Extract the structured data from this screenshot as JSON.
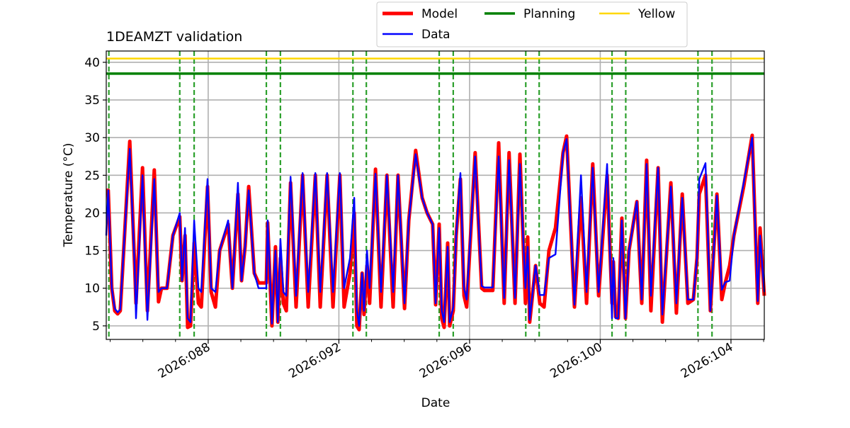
{
  "chart_data": {
    "type": "line",
    "title": "1DEAMZT validation",
    "xlabel": "Date",
    "ylabel": "Temperature (°C)",
    "xlim": [
      84.88,
      105.02
    ],
    "ylim": [
      3.2,
      41.5
    ],
    "grid": true,
    "legend_placement": "top-center, outside above axes",
    "x_ticks": [
      88,
      92,
      96,
      100,
      104
    ],
    "x_tick_labels": [
      "2026:088",
      "2026:092",
      "2026:096",
      "2026:100",
      "2026:104"
    ],
    "x_minor_ticks": [
      85,
      86,
      87,
      89,
      90,
      91,
      93,
      94,
      95,
      97,
      98,
      99,
      101,
      102,
      103,
      105
    ],
    "y_ticks": [
      5,
      10,
      15,
      20,
      25,
      30,
      35,
      40
    ],
    "y_tick_labels": [
      "5",
      "10",
      "15",
      "20",
      "25",
      "30",
      "35",
      "40"
    ],
    "x": [
      84.88,
      84.94,
      85.05,
      85.14,
      85.23,
      85.31,
      85.44,
      85.6,
      85.75,
      85.79,
      85.99,
      86.14,
      86.35,
      86.48,
      86.57,
      86.74,
      86.92,
      87.13,
      87.2,
      87.29,
      87.37,
      87.46,
      87.57,
      87.7,
      87.79,
      87.98,
      88.09,
      88.22,
      88.35,
      88.61,
      88.74,
      88.91,
      89.02,
      89.13,
      89.24,
      89.41,
      89.54,
      89.78,
      89.82,
      89.95,
      90.06,
      90.13,
      90.21,
      90.3,
      90.39,
      90.52,
      90.69,
      90.89,
      91.06,
      91.28,
      91.43,
      91.64,
      91.82,
      92.03,
      92.16,
      92.34,
      92.47,
      92.55,
      92.62,
      92.71,
      92.77,
      92.86,
      92.94,
      93.12,
      93.29,
      93.47,
      93.66,
      93.81,
      94.01,
      94.14,
      94.35,
      94.55,
      94.7,
      94.87,
      94.96,
      95.07,
      95.15,
      95.22,
      95.33,
      95.39,
      95.5,
      95.59,
      95.72,
      95.83,
      95.91,
      96.17,
      96.37,
      96.45,
      96.71,
      96.89,
      97.06,
      97.21,
      97.39,
      97.54,
      97.71,
      97.78,
      97.84,
      98.02,
      98.15,
      98.28,
      98.43,
      98.63,
      98.86,
      98.97,
      99.21,
      99.41,
      99.58,
      99.77,
      99.95,
      100.21,
      100.36,
      100.4,
      100.47,
      100.55,
      100.66,
      100.77,
      100.88,
      101.12,
      101.27,
      101.42,
      101.55,
      101.77,
      101.9,
      102.16,
      102.33,
      102.51,
      102.68,
      102.85,
      102.96,
      103.03,
      103.22,
      103.37,
      103.57,
      103.72,
      103.83,
      103.96,
      104.09,
      104.39,
      104.65,
      104.82,
      104.89,
      105.02
    ],
    "series": [
      {
        "name": "Model",
        "color": "#ff0000",
        "values": [
          23,
          23,
          10,
          7,
          6.6,
          7,
          17,
          29.5,
          13,
          8,
          26,
          7,
          25.7,
          8.2,
          10,
          10,
          17,
          19.5,
          11,
          17,
          4.8,
          5,
          16,
          8,
          7.5,
          23.5,
          9.5,
          7.5,
          15,
          18.5,
          10,
          22.5,
          11,
          15.5,
          23.5,
          12,
          10.7,
          10.7,
          18.7,
          5,
          15.5,
          5.5,
          14,
          8,
          7,
          24,
          7.5,
          25,
          7.5,
          25,
          7.5,
          25,
          7.5,
          25,
          7.5,
          12,
          20,
          5,
          4.5,
          12,
          6.5,
          13,
          8,
          25.8,
          7.5,
          25,
          7.5,
          25,
          7.3,
          19,
          28.3,
          22,
          20,
          18.5,
          7.8,
          18.5,
          6,
          4.8,
          16,
          5,
          7,
          17,
          24.5,
          9,
          7.5,
          28,
          10,
          9.7,
          9.7,
          29.3,
          8,
          28,
          8,
          27.8,
          8,
          16.8,
          5.5,
          13,
          8,
          7.5,
          15,
          18,
          28,
          30.2,
          7.5,
          22,
          8,
          26.5,
          9,
          25,
          8,
          13.5,
          6.2,
          6,
          19.3,
          6,
          15,
          21.5,
          8,
          27,
          7,
          26,
          5.5,
          24,
          6.7,
          22.5,
          8,
          8.5,
          14,
          22.5,
          25,
          7,
          22.5,
          8.5,
          10.8,
          13,
          17,
          23.5,
          30.3,
          8,
          18,
          9
        ]
      },
      {
        "name": "Data",
        "color": "#0000ff",
        "values": [
          17,
          23,
          10,
          7.3,
          6.8,
          7.2,
          17,
          28.5,
          13,
          6,
          25,
          5.8,
          24.5,
          9.5,
          10,
          10,
          17,
          20,
          11,
          18,
          6,
          5.5,
          19,
          10,
          9.5,
          24.5,
          10,
          9.5,
          15,
          19,
          10,
          24,
          11,
          15.5,
          23,
          12,
          10,
          10,
          19,
          5.3,
          15,
          5.5,
          16.5,
          9.5,
          9,
          24.8,
          9,
          25.3,
          9.5,
          25.3,
          9.5,
          25.3,
          9.5,
          25.3,
          10,
          14,
          22,
          7,
          5,
          12,
          7,
          15,
          10,
          25.2,
          9.5,
          25,
          9.5,
          25,
          8,
          19,
          27.8,
          22,
          20,
          18.5,
          8,
          18,
          7,
          5.5,
          15.5,
          5.5,
          7.5,
          17,
          25.3,
          10,
          8.5,
          27.5,
          10.3,
          10.1,
          10.1,
          27.5,
          8.7,
          27,
          8.7,
          26.5,
          10,
          15.5,
          5.8,
          13,
          9.1,
          9.1,
          14,
          14.5,
          28,
          29.8,
          7.8,
          25,
          9.5,
          26,
          9.5,
          26.5,
          6,
          14,
          6,
          6,
          19,
          6,
          15,
          21.5,
          8.5,
          26.5,
          9,
          26,
          6.5,
          23.5,
          8,
          22,
          8.5,
          8.5,
          14,
          24.5,
          26.6,
          7,
          22.3,
          9.8,
          10.8,
          11,
          17,
          24,
          30,
          8.3,
          17,
          9.5
        ]
      }
    ],
    "horizontal_lines": [
      {
        "name": "Planning",
        "value": 38.5,
        "color": "#008000"
      },
      {
        "name": "Yellow",
        "value": 40.5,
        "color": "#ffd700"
      }
    ],
    "vertical_dashed_lines": {
      "color": "#2ca02c",
      "values": [
        84.96,
        87.13,
        87.57,
        89.78,
        90.21,
        92.43,
        92.84,
        95.07,
        95.5,
        97.72,
        98.13,
        100.36,
        100.78,
        102.99,
        103.42
      ]
    },
    "legend": [
      {
        "label": "Model",
        "color": "#ff0000"
      },
      {
        "label": "Data",
        "color": "#0000ff"
      },
      {
        "label": "Planning",
        "color": "#008000"
      },
      {
        "label": "Yellow",
        "color": "#ffd700"
      }
    ]
  }
}
